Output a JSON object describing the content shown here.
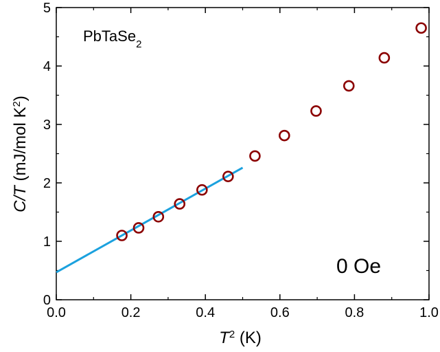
{
  "chart_data": {
    "type": "scatter",
    "title": "",
    "xlabel": {
      "main": "T",
      "sup": "2",
      "rest": " (K)"
    },
    "ylabel": {
      "main": "C/T",
      "rest": " (mJ/mol K",
      "sup": "2",
      "end": ")"
    },
    "xlim": [
      0.0,
      1.0
    ],
    "ylim": [
      0,
      5
    ],
    "xticks": [
      "0.0",
      "0.2",
      "0.4",
      "0.6",
      "0.8",
      "1.0"
    ],
    "yticks": [
      "0",
      "1",
      "2",
      "3",
      "4",
      "5"
    ],
    "grid": false,
    "series": [
      {
        "type": "scatter",
        "marker": "open-circle",
        "color": "#8b0000",
        "x": [
          0.176,
          0.221,
          0.274,
          0.331,
          0.391,
          0.461,
          0.533,
          0.612,
          0.697,
          0.785,
          0.88,
          0.979
        ],
        "y": [
          1.1,
          1.23,
          1.42,
          1.64,
          1.88,
          2.11,
          2.46,
          2.81,
          3.23,
          3.66,
          4.14,
          4.65
        ]
      },
      {
        "type": "line",
        "color": "#1ba1de",
        "x": [
          0.0,
          0.5
        ],
        "y": [
          0.47,
          2.26
        ]
      }
    ],
    "annotations": {
      "sample": {
        "text": "PbTaSe",
        "sub": "2"
      },
      "field": "0 Oe"
    }
  }
}
